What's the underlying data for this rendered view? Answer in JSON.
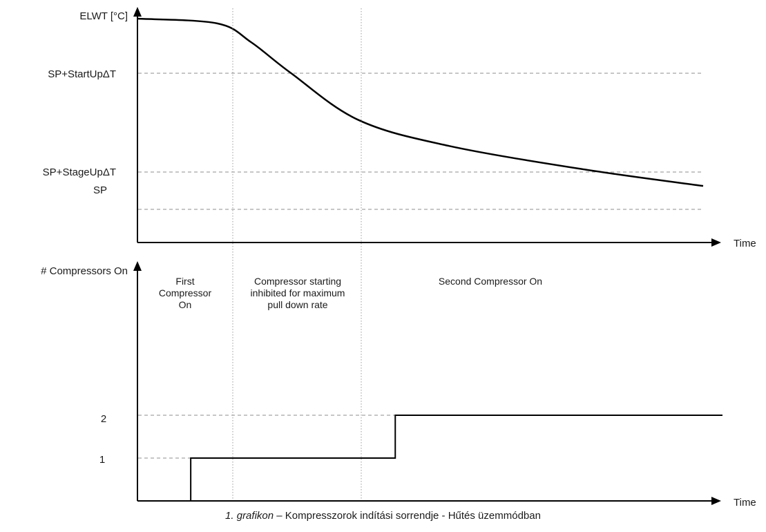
{
  "chart_data": [
    {
      "type": "line",
      "title": "",
      "ylabel": "ELWT [°C]",
      "xlabel": "Time",
      "grid": false,
      "threshold_labels": [
        "SP+StartUpΔT",
        "SP+StageUpΔT",
        "SP"
      ],
      "series": [
        {
          "values_note": "",
          "x": [
            0,
            0.14,
            0.2,
            0.27,
            0.39,
            0.55,
            0.79,
            1.0
          ],
          "y": [
            0.95,
            0.93,
            0.85,
            0.72,
            0.52,
            0.41,
            0.31,
            0.24
          ]
        }
      ]
    },
    {
      "type": "line",
      "title": "",
      "ylabel": "# Compressors On",
      "xlabel": "Time",
      "grid": false,
      "y_ticks": [
        "1",
        "2"
      ],
      "series": [
        {
          "x": [
            0,
            0.09,
            0.09,
            0.44,
            0.44,
            1.0
          ],
          "y": [
            0,
            0,
            1,
            1,
            2,
            2
          ]
        }
      ]
    }
  ],
  "annotations": {
    "phase1": [
      "First",
      "Compressor",
      "On"
    ],
    "phase2": [
      "Compressor starting",
      "inhibited for maximum",
      "pull down rate"
    ],
    "phase3": "Second Compressor On"
  },
  "caption": {
    "prefix": "1. grafikon",
    "text": " – Kompresszorok indítási sorrendje - Hűtés üzemmódban"
  }
}
